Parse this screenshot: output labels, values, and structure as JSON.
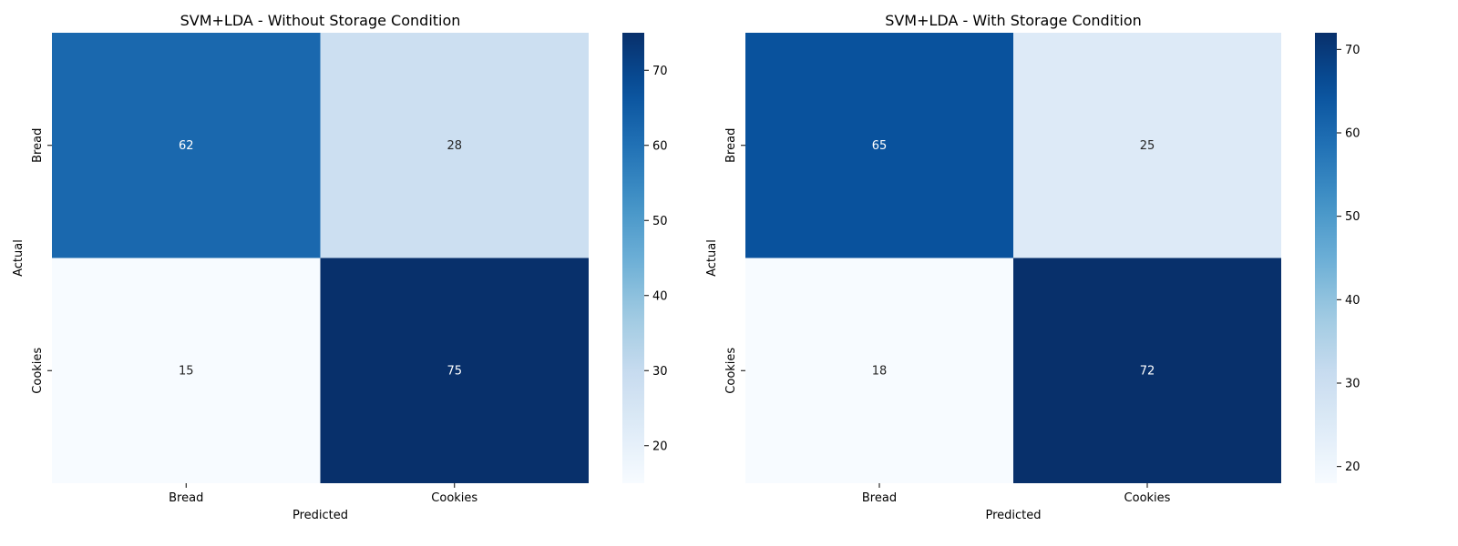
{
  "chart_data": [
    {
      "type": "heatmap",
      "title": "SVM+LDA - Without Storage Condition",
      "xlabel": "Predicted",
      "ylabel": "Actual",
      "x_categories": [
        "Bread",
        "Cookies"
      ],
      "y_categories": [
        "Bread",
        "Cookies"
      ],
      "values": [
        [
          62,
          28
        ],
        [
          15,
          75
        ]
      ],
      "colorbar": {
        "range": [
          15,
          75
        ],
        "ticks": [
          20,
          30,
          40,
          50,
          60,
          70
        ]
      },
      "colormap": "Blues"
    },
    {
      "type": "heatmap",
      "title": "SVM+LDA - With Storage Condition",
      "xlabel": "Predicted",
      "ylabel": "Actual",
      "x_categories": [
        "Bread",
        "Cookies"
      ],
      "y_categories": [
        "Bread",
        "Cookies"
      ],
      "values": [
        [
          65,
          25
        ],
        [
          18,
          72
        ]
      ],
      "colorbar": {
        "range": [
          18,
          72
        ],
        "ticks": [
          20,
          30,
          40,
          50,
          60,
          70
        ]
      },
      "colormap": "Blues"
    }
  ]
}
